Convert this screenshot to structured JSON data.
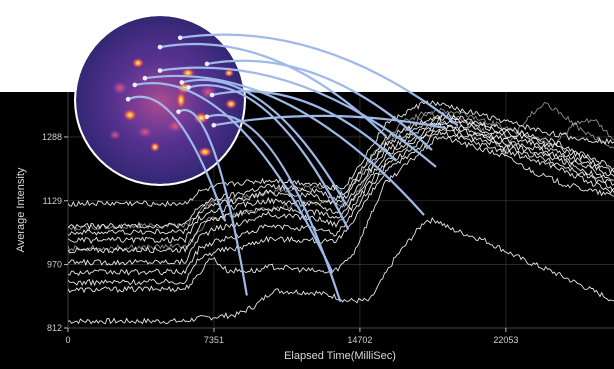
{
  "chart_data": {
    "type": "line",
    "title": "",
    "xlabel": "Elapsed Time(MilliSec)",
    "ylabel": "Average Intensity",
    "xlim": [
      0,
      27500
    ],
    "ylim": [
      812,
      1400
    ],
    "x_ticks": [
      0,
      7351,
      14702,
      22053
    ],
    "y_ticks": [
      812,
      970,
      1129,
      1288
    ],
    "grid": true,
    "background_color": "#000000",
    "trace_color": "#ffffff",
    "connector_color": "#9fb9e8",
    "inset": {
      "kind": "fluorescence-micrograph",
      "shape": "circle",
      "palette": [
        "#3a2a80",
        "#7d3fa0",
        "#d8405f",
        "#f6a43a",
        "#fff59d"
      ]
    },
    "series": [
      {
        "x": [
          0,
          5900,
          6400,
          8500,
          9500,
          10300,
          12500,
          13500,
          14000,
          15200,
          16500,
          18000,
          18600,
          19200,
          21000,
          23000,
          24500,
          26000,
          27500
        ],
        "values": [
          829,
          829,
          835,
          845,
          870,
          905,
          900,
          890,
          880,
          880,
          988,
          1080,
          1080,
          1060,
          1030,
          980,
          950,
          915,
          880
        ]
      },
      {
        "x": [
          0,
          5900,
          6400,
          7200,
          8000,
          9600,
          10200,
          13300,
          13700,
          14400,
          16000,
          18700,
          20000,
          22000,
          23500,
          25000,
          27500
        ],
        "values": [
          907,
          910,
          932,
          990,
          955,
          955,
          965,
          950,
          965,
          1000,
          1175,
          1290,
          1270,
          1240,
          1200,
          1170,
          1140
        ]
      },
      {
        "x": [
          0,
          5900,
          6600,
          7500,
          8500,
          10000,
          12500,
          13500,
          14000,
          16000,
          18700,
          20500,
          22500,
          24500,
          26000,
          27500
        ],
        "values": [
          925,
          928,
          985,
          1005,
          1010,
          1035,
          1030,
          1025,
          1055,
          1200,
          1300,
          1275,
          1245,
          1215,
          1180,
          1150
        ]
      },
      {
        "x": [
          0,
          5900,
          6600,
          7500,
          8500,
          10000,
          12500,
          13500,
          14000,
          16000,
          18700,
          20500,
          22500,
          24500,
          26000,
          27500
        ],
        "values": [
          950,
          952,
          1010,
          1030,
          1040,
          1065,
          1060,
          1045,
          1075,
          1215,
          1310,
          1285,
          1255,
          1225,
          1195,
          1160
        ]
      },
      {
        "x": [
          0,
          5900,
          6600,
          7500,
          8500,
          10000,
          12500,
          13500,
          14000,
          16000,
          18700,
          20500,
          22500,
          24500,
          26000,
          27500
        ],
        "values": [
          975,
          977,
          1040,
          1060,
          1070,
          1095,
          1085,
          1070,
          1095,
          1225,
          1318,
          1295,
          1265,
          1235,
          1205,
          1170
        ]
      },
      {
        "x": [
          0,
          5900,
          6600,
          7500,
          8500,
          10000,
          12500,
          13500,
          14000,
          16000,
          18700,
          20500,
          22500,
          24500,
          26000,
          27500
        ],
        "values": [
          1005,
          1008,
          1065,
          1085,
          1095,
          1110,
          1100,
          1085,
          1110,
          1240,
          1325,
          1300,
          1275,
          1245,
          1215,
          1180
        ]
      },
      {
        "x": [
          0,
          5900,
          6600,
          7500,
          8500,
          10000,
          12500,
          13500,
          14000,
          16000,
          18700,
          20500,
          22500,
          24500,
          26000,
          27500
        ],
        "values": [
          1030,
          1032,
          1085,
          1105,
          1115,
          1130,
          1120,
          1100,
          1125,
          1255,
          1330,
          1310,
          1285,
          1255,
          1225,
          1190
        ]
      },
      {
        "x": [
          0,
          5900,
          6600,
          7500,
          8500,
          10000,
          12500,
          13500,
          14000,
          16000,
          18700,
          20500,
          22500,
          24500,
          26000,
          27500
        ],
        "values": [
          1050,
          1052,
          1100,
          1120,
          1130,
          1150,
          1140,
          1120,
          1140,
          1270,
          1338,
          1318,
          1295,
          1265,
          1235,
          1200
        ]
      },
      {
        "x": [
          0,
          5900,
          6600,
          7500,
          8500,
          10000,
          12500,
          13500,
          14000,
          16000,
          18700,
          20500,
          22500,
          24500,
          26000,
          27500
        ],
        "values": [
          1065,
          1068,
          1115,
          1135,
          1145,
          1165,
          1155,
          1135,
          1155,
          1285,
          1345,
          1325,
          1305,
          1275,
          1245,
          1210
        ]
      },
      {
        "x": [
          0,
          5900,
          6600,
          7500,
          9000,
          10500,
          12500,
          13800,
          14200,
          16000,
          18000,
          19500,
          21000,
          22500,
          24000,
          25500,
          27500
        ],
        "values": [
          1122,
          1122,
          1150,
          1165,
          1175,
          1180,
          1170,
          1160,
          1180,
          1320,
          1375,
          1360,
          1340,
          1320,
          1300,
          1285,
          1275
        ]
      },
      {
        "x": [
          0,
          6000,
          7000,
          9000,
          10800,
          12500,
          14000,
          15500,
          17000,
          18500,
          20000,
          21500,
          23000,
          24500,
          25500,
          26500,
          27500
        ],
        "values": [
          1060,
          1070,
          1120,
          1140,
          1155,
          1165,
          1150,
          1250,
          1330,
          1355,
          1345,
          1320,
          1295,
          1270,
          1320,
          1330,
          1280
        ]
      },
      {
        "x": [
          0,
          6000,
          7000,
          9000,
          11000,
          12500,
          14200,
          16000,
          18000,
          20000,
          21000,
          22000,
          23000,
          24000,
          25000,
          26000,
          27500
        ],
        "values": [
          1010,
          1015,
          1080,
          1100,
          1115,
          1125,
          1120,
          1270,
          1345,
          1330,
          1300,
          1250,
          1330,
          1370,
          1340,
          1300,
          1260
        ]
      }
    ],
    "connectors": [
      {
        "from": [
          0.62,
          0.26
        ],
        "to": [
          19600,
          1318
        ]
      },
      {
        "from": [
          0.5,
          0.37
        ],
        "to": [
          16000,
          1290
        ]
      },
      {
        "from": [
          0.78,
          0.57
        ],
        "to": [
          18300,
          1257
        ]
      },
      {
        "from": [
          0.5,
          0.65
        ],
        "to": [
          18500,
          1215
        ]
      },
      {
        "from": [
          0.41,
          0.74
        ],
        "to": [
          17900,
          1095
        ]
      },
      {
        "from": [
          0.63,
          0.79
        ],
        "to": [
          14000,
          1120
        ]
      },
      {
        "from": [
          0.35,
          0.82
        ],
        "to": [
          13300,
          952
        ]
      },
      {
        "from": [
          0.67,
          0.85
        ],
        "to": [
          14100,
          1060
        ]
      },
      {
        "from": [
          0.31,
          0.99
        ],
        "to": [
          7900,
          1080
        ]
      },
      {
        "from": [
          0.81,
          0.94
        ],
        "to": [
          16500,
          1230
        ]
      },
      {
        "from": [
          0.78,
          1.2
        ],
        "to": [
          13700,
          880
        ]
      },
      {
        "from": [
          0.61,
          1.14
        ],
        "to": [
          9000,
          895
        ]
      },
      {
        "from": [
          0.82,
          1.3
        ],
        "to": [
          19000,
          1310
        ]
      }
    ]
  }
}
